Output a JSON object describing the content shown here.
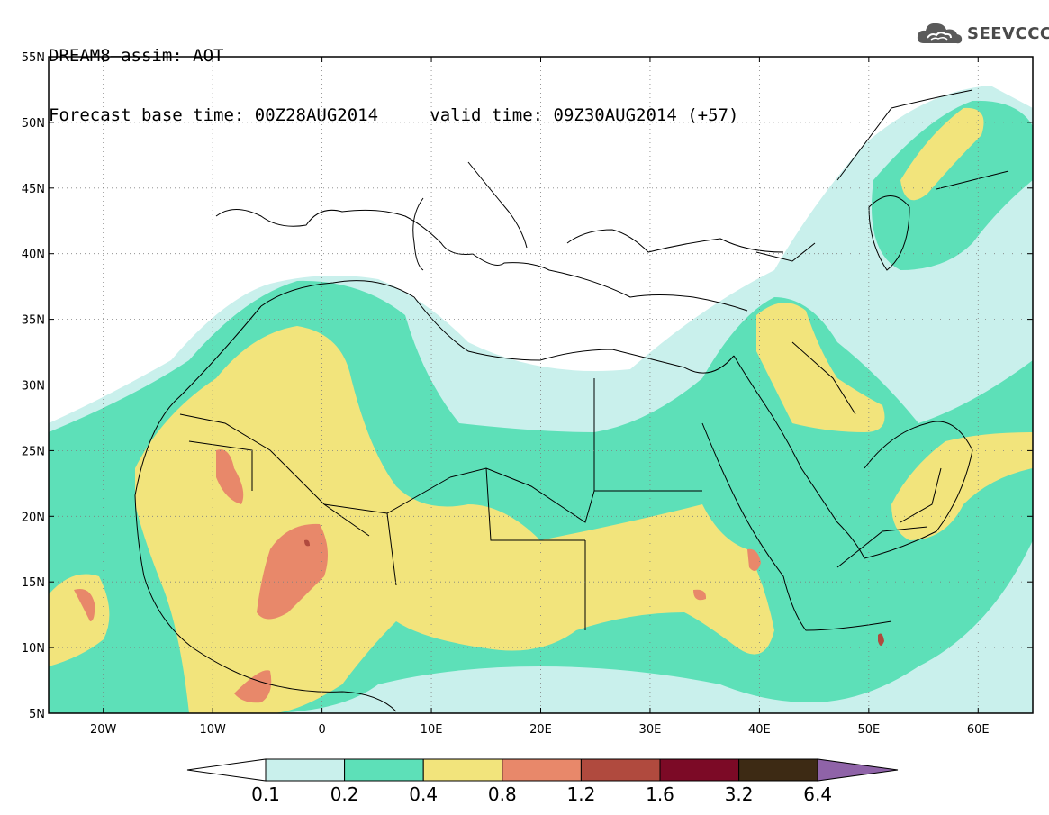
{
  "header": {
    "line1": "DREAM8–assim: AOT",
    "base_time": "Forecast base time: 00Z28AUG2014",
    "valid_time": "valid time: 09Z30AUG2014 (+57)"
  },
  "logo": {
    "text": "SEEVCCC",
    "icon": "cloud-icon"
  },
  "map": {
    "projection": "equirectangular",
    "lon_range": [
      -25,
      65
    ],
    "lat_range": [
      5,
      55
    ],
    "lat_ticks": [
      "55N",
      "50N",
      "45N",
      "40N",
      "35N",
      "30N",
      "25N",
      "20N",
      "15N",
      "10N",
      "5N"
    ],
    "lon_ticks": [
      "20W",
      "10W",
      "0",
      "10E",
      "20E",
      "30E",
      "40E",
      "50E",
      "60E"
    ],
    "gridlines": "dotted"
  },
  "colorbar": {
    "labels": [
      "0.1",
      "0.2",
      "0.4",
      "0.8",
      "1.2",
      "1.6",
      "3.2",
      "6.4"
    ],
    "colors": [
      "#c9f0ec",
      "#5de0b8",
      "#f2e47c",
      "#e8886a",
      "#b04a3e",
      "#7c0a26",
      "#3d2a14"
    ],
    "under_color": "#ffffff",
    "over_color": "#8f63a8"
  }
}
